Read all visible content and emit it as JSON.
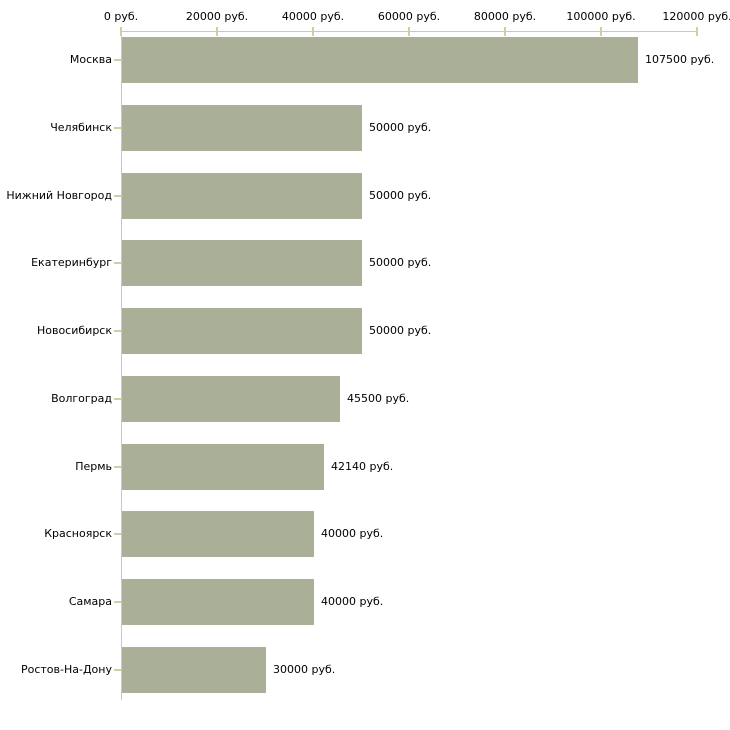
{
  "chart_data": {
    "type": "bar",
    "orientation": "horizontal",
    "title": "",
    "xlabel": "",
    "ylabel": "",
    "unit": "руб.",
    "categories": [
      "Москва",
      "Челябинск",
      "Нижний Новгород",
      "Екатеринбург",
      "Новосибирск",
      "Волгоград",
      "Пермь",
      "Красноярск",
      "Самара",
      "Ростов-На-Дону"
    ],
    "values": [
      107500,
      50000,
      50000,
      50000,
      50000,
      45500,
      42140,
      40000,
      40000,
      30000
    ],
    "value_labels": [
      "107500 руб.",
      "50000 руб.",
      "50000 руб.",
      "50000 руб.",
      "50000 руб.",
      "45500 руб.",
      "42140 руб.",
      "40000 руб.",
      "40000 руб.",
      "30000 руб."
    ],
    "x_axis": {
      "position": "top",
      "xlim": [
        0,
        120000
      ],
      "tick_values": [
        0,
        20000,
        40000,
        60000,
        80000,
        100000,
        120000
      ],
      "tick_labels": [
        "0 руб.",
        "20000 руб.",
        "40000 руб.",
        "60000 руб.",
        "80000 руб.",
        "100000 руб.",
        "120000 руб."
      ]
    },
    "grid": false,
    "legend": false,
    "colors": {
      "bar": "#aab098",
      "axis_line": "#c6c6c6",
      "tick_mark": "#cfcfa2",
      "text": "#000000",
      "background": "#ffffff"
    }
  }
}
